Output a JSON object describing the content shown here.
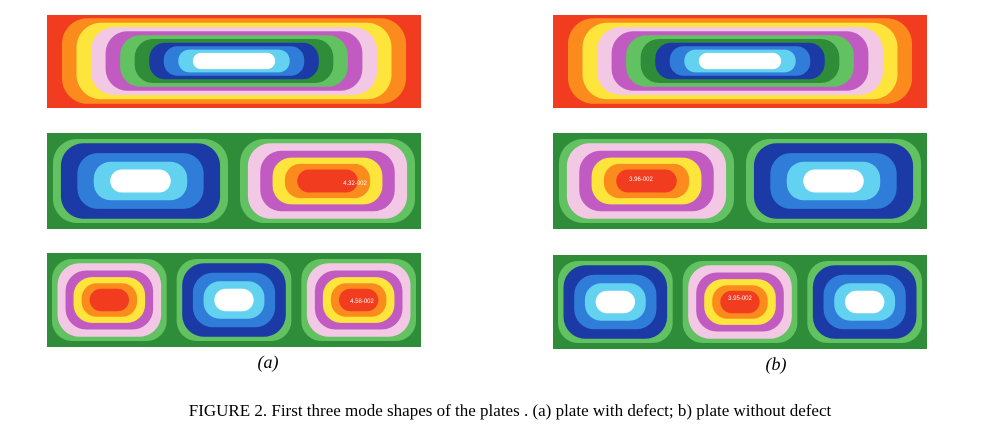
{
  "figure": {
    "panels": [
      {
        "label": "(a)",
        "annotations": [
          "4.32-002",
          "4.58-002"
        ]
      },
      {
        "label": "(b)",
        "annotations": [
          "3.96-002",
          "3.95-002"
        ]
      }
    ],
    "caption": "FIGURE 2. First three mode shapes of the plates . (a) plate with defect; b) plate without defect"
  }
}
